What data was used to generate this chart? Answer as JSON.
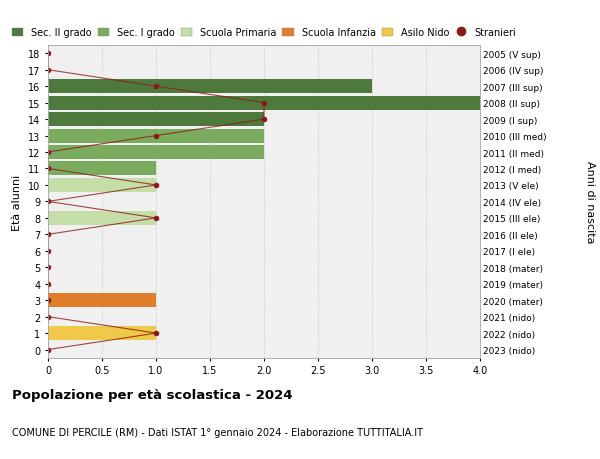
{
  "ages": [
    18,
    17,
    16,
    15,
    14,
    13,
    12,
    11,
    10,
    9,
    8,
    7,
    6,
    5,
    4,
    3,
    2,
    1,
    0
  ],
  "right_labels": [
    "2005 (V sup)",
    "2006 (IV sup)",
    "2007 (III sup)",
    "2008 (II sup)",
    "2009 (I sup)",
    "2010 (III med)",
    "2011 (II med)",
    "2012 (I med)",
    "2013 (V ele)",
    "2014 (IV ele)",
    "2015 (III ele)",
    "2016 (II ele)",
    "2017 (I ele)",
    "2018 (mater)",
    "2019 (mater)",
    "2020 (mater)",
    "2021 (nido)",
    "2022 (nido)",
    "2023 (nido)"
  ],
  "bar_values": [
    0,
    0,
    3.0,
    4.0,
    2.0,
    2.0,
    2.0,
    1.0,
    1.0,
    0,
    1.0,
    0,
    0,
    0,
    0,
    1.0,
    0,
    1.0,
    0
  ],
  "bar_colors": [
    "none",
    "none",
    "#4d7a3c",
    "#4d7a3c",
    "#4d7a3c",
    "#7aab5e",
    "#7aab5e",
    "#7aab5e",
    "#c5dea8",
    "none",
    "#c5dea8",
    "none",
    "none",
    "none",
    "none",
    "#e07c2a",
    "none",
    "#f0c84a",
    "none"
  ],
  "stranieri_values": [
    0,
    0,
    1.0,
    2.0,
    2.0,
    1.0,
    0,
    0,
    1.0,
    0,
    1.0,
    0,
    0,
    0,
    0,
    0,
    0,
    1.0,
    0
  ],
  "stranieri_color": "#8b1a1a",
  "xlim": [
    0,
    4.0
  ],
  "ylim": [
    -0.5,
    18.5
  ],
  "title": "Popolazione per età scolastica - 2024",
  "subtitle": "COMUNE DI PERCILE (RM) - Dati ISTAT 1° gennaio 2024 - Elaborazione TUTTITALIA.IT",
  "ylabel": "Età alunni",
  "right_ylabel": "Anni di nascita",
  "legend_items": [
    {
      "label": "Sec. II grado",
      "color": "#4d7a3c"
    },
    {
      "label": "Sec. I grado",
      "color": "#7aab5e"
    },
    {
      "label": "Scuola Primaria",
      "color": "#c5dea8"
    },
    {
      "label": "Scuola Infanzia",
      "color": "#e07c2a"
    },
    {
      "label": "Asilo Nido",
      "color": "#f0c84a"
    },
    {
      "label": "Stranieri",
      "color": "#8b1a1a"
    }
  ],
  "background_color": "#f0f0f0",
  "grid_color": "#d0d0d0"
}
